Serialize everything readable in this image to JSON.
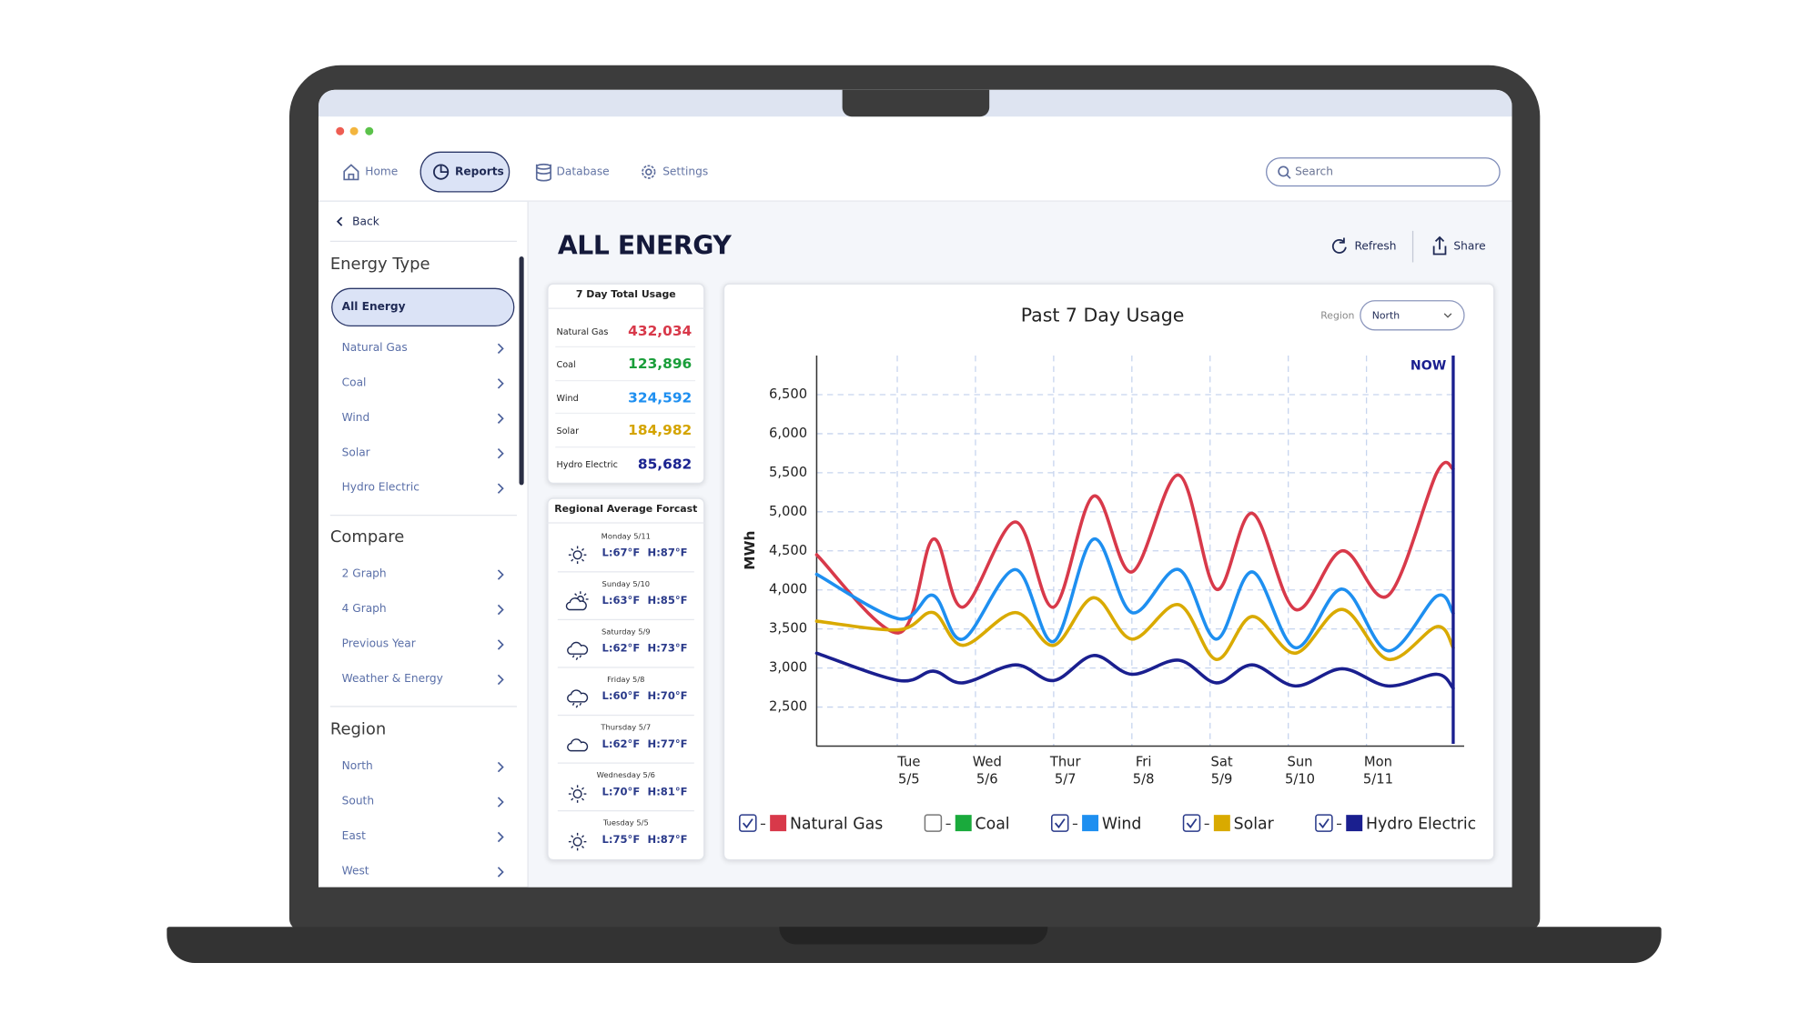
{
  "nav": {
    "items": [
      "Home",
      "Reports",
      "Database",
      "Settings"
    ],
    "search": "Search"
  },
  "sidebar": {
    "back": "Back",
    "sections": [
      {
        "title": "Energy Type",
        "items": [
          "All Energy",
          "Natural Gas",
          "Coal",
          "Wind",
          "Solar",
          "Hydro Electric"
        ]
      },
      {
        "title": "Compare",
        "items": [
          "2 Graph",
          "4 Graph",
          "Previous Year",
          "Weather & Energy"
        ]
      },
      {
        "title": "Region",
        "items": [
          "North",
          "South",
          "East",
          "West"
        ]
      }
    ]
  },
  "page_title": "ALL ENERGY",
  "actions": [
    "Refresh",
    "Share"
  ],
  "totals": {
    "title": "7 Day Total Usage",
    "rows": [
      {
        "label": "Natural Gas",
        "value": "432,034",
        "color": "#d8394a"
      },
      {
        "label": "Coal",
        "value": "123,896",
        "color": "#1a9e3a"
      },
      {
        "label": "Wind",
        "value": "324,592",
        "color": "#1e8ff0"
      },
      {
        "label": "Solar",
        "value": "184,982",
        "color": "#d4a400"
      },
      {
        "label": "Hydro Electric",
        "value": "85,682",
        "color": "#1a2390"
      }
    ]
  },
  "forecast": {
    "title": "Regional Average Forcast",
    "days": [
      {
        "date": "Monday 5/11",
        "low": "L:67°F",
        "high": "H:87°F",
        "icon": "sun"
      },
      {
        "date": "Sunday 5/10",
        "low": "L:63°F",
        "high": "H:85°F",
        "icon": "sun-cloud"
      },
      {
        "date": "Saturday 5/9",
        "low": "L:62°F",
        "high": "H:73°F",
        "icon": "rain"
      },
      {
        "date": "Friday 5/8",
        "low": "L:60°F",
        "high": "H:70°F",
        "icon": "rain"
      },
      {
        "date": "Thursday 5/7",
        "low": "L:62°F",
        "high": "H:77°F",
        "icon": "cloud"
      },
      {
        "date": "Wednesday 5/6",
        "low": "L:70°F",
        "high": "H:81°F",
        "icon": "sun"
      },
      {
        "date": "Tuesday 5/5",
        "low": "L:75°F",
        "high": "H:87°F",
        "icon": "sun"
      }
    ]
  },
  "chart_data": {
    "type": "line",
    "title": "Past 7 Day Usage",
    "region_label": "Region",
    "region_value": "North",
    "y_label": "MWh",
    "now_label": "NOW",
    "now_x": 6.96,
    "grid": true,
    "xlim": [
      -1.18,
      7.1
    ],
    "xticks": [
      0,
      1,
      2,
      3,
      4,
      5,
      6
    ],
    "xtick_labels": [
      {
        "day": "Tue",
        "date": "5/5"
      },
      {
        "day": "Wed",
        "date": "5/6"
      },
      {
        "day": "Thur",
        "date": "5/7"
      },
      {
        "day": "Fri",
        "date": "5/8"
      },
      {
        "day": "Sat",
        "date": "5/9"
      },
      {
        "day": "Sun",
        "date": "5/10"
      },
      {
        "day": "Mon",
        "date": "5/11"
      }
    ],
    "ylim": [
      2000,
      7000
    ],
    "yticks": [
      {
        "value": 2500,
        "label": "2,500"
      },
      {
        "value": 3000,
        "label": "3,000"
      },
      {
        "value": 3500,
        "label": "3,500"
      },
      {
        "value": 4000,
        "label": "4,000"
      },
      {
        "value": 4500,
        "label": "4,500"
      },
      {
        "value": 5000,
        "label": "5,000"
      },
      {
        "value": 5500,
        "label": "5,500"
      },
      {
        "value": 6000,
        "label": "6,000"
      },
      {
        "value": 6500,
        "label": "6,500"
      }
    ],
    "x": [
      -1.18,
      -0.13,
      0.31,
      0.69,
      1.36,
      1.85,
      2.36,
      2.85,
      3.45,
      3.93,
      4.39,
      4.94,
      5.54,
      6.13,
      6.75,
      6.96
    ],
    "series": [
      {
        "name": "Natural Gas",
        "color": "#d8394a",
        "checked": true,
        "values": [
          4450,
          3450,
          4650,
          3780,
          4870,
          3780,
          5200,
          4230,
          5470,
          4010,
          4980,
          3750,
          4500,
          3930,
          5500,
          5550
        ]
      },
      {
        "name": "Coal",
        "color": "#1aaa3c",
        "checked": false
      },
      {
        "name": "Wind",
        "color": "#1e8ff0",
        "checked": true,
        "values": [
          4200,
          3630,
          3930,
          3370,
          4260,
          3340,
          4650,
          3710,
          4260,
          3370,
          4230,
          3260,
          4010,
          3220,
          3920,
          3700
        ]
      },
      {
        "name": "Solar",
        "color": "#d9aa00",
        "checked": true,
        "values": [
          3600,
          3490,
          3710,
          3290,
          3710,
          3290,
          3900,
          3370,
          3810,
          3110,
          3660,
          3190,
          3750,
          3110,
          3530,
          3260
        ]
      },
      {
        "name": "Hydro Electric",
        "color": "#1a1f8f",
        "checked": true,
        "values": [
          3190,
          2840,
          2960,
          2810,
          3040,
          2840,
          3160,
          2920,
          3100,
          2810,
          3040,
          2770,
          2990,
          2770,
          2920,
          2740
        ]
      }
    ]
  }
}
